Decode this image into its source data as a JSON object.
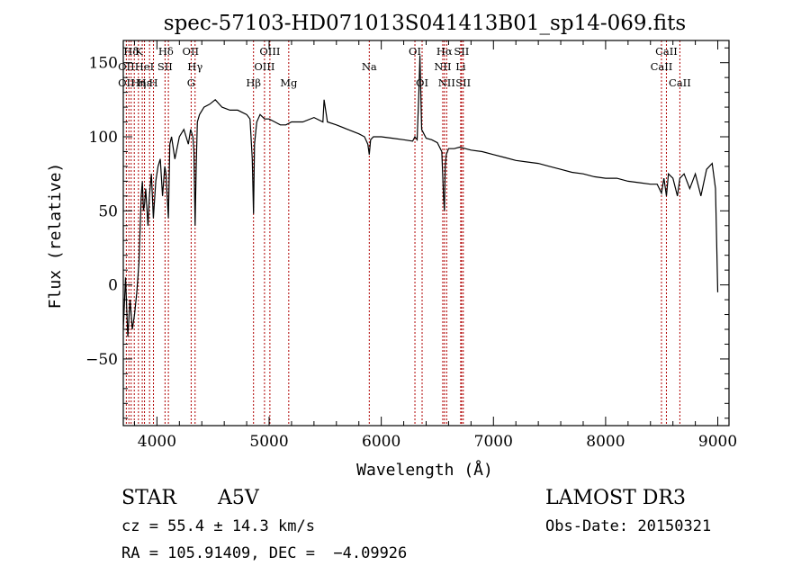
{
  "chart_data": {
    "type": "line",
    "title": "spec-57103-HD071013S041413B01_sp14-069.fits",
    "xlabel": "Wavelength (Å)",
    "ylabel": "Flux (relative)",
    "xlim": [
      3700,
      9100
    ],
    "ylim": [
      -95,
      165
    ],
    "xticks": [
      4000,
      5000,
      6000,
      7000,
      8000,
      9000
    ],
    "xtick_labels": [
      "4000",
      "5000",
      "6000",
      "7000",
      "8000",
      "9000"
    ],
    "yticks": [
      -50,
      0,
      50,
      100,
      150
    ],
    "ytick_labels": [
      "−50",
      "0",
      "50",
      "100",
      "150"
    ],
    "series": [
      {
        "name": "spectrum",
        "x": [
          3700,
          3720,
          3740,
          3760,
          3780,
          3800,
          3820,
          3840,
          3860,
          3870,
          3880,
          3890,
          3900,
          3920,
          3933,
          3950,
          3968,
          3990,
          4010,
          4030,
          4050,
          4070,
          4080,
          4102,
          4115,
          4130,
          4160,
          4200,
          4240,
          4280,
          4300,
          4320,
          4330,
          4340,
          4350,
          4360,
          4380,
          4420,
          4470,
          4520,
          4580,
          4650,
          4720,
          4800,
          4830,
          4850,
          4861,
          4870,
          4890,
          4920,
          4960,
          5000,
          5050,
          5100,
          5150,
          5200,
          5300,
          5400,
          5480,
          5490,
          5520,
          5600,
          5700,
          5800,
          5850,
          5880,
          5893,
          5905,
          5930,
          6000,
          6100,
          6200,
          6280,
          6300,
          6320,
          6335,
          6345,
          6360,
          6400,
          6450,
          6500,
          6540,
          6555,
          6563,
          6570,
          6580,
          6600,
          6650,
          6700,
          6750,
          6800,
          6900,
          7000,
          7100,
          7200,
          7300,
          7400,
          7500,
          7600,
          7700,
          7800,
          7900,
          8000,
          8100,
          8200,
          8300,
          8400,
          8460,
          8498,
          8520,
          8542,
          8560,
          8600,
          8640,
          8662,
          8700,
          8750,
          8800,
          8850,
          8900,
          8950,
          8980,
          9000
        ],
        "y": [
          -30,
          5,
          -35,
          -10,
          -30,
          -20,
          -5,
          15,
          60,
          70,
          50,
          55,
          65,
          40,
          60,
          75,
          45,
          70,
          80,
          85,
          60,
          80,
          75,
          45,
          95,
          100,
          85,
          100,
          105,
          95,
          105,
          100,
          90,
          40,
          80,
          110,
          115,
          120,
          122,
          125,
          120,
          118,
          118,
          115,
          112,
          85,
          48,
          95,
          110,
          115,
          112,
          112,
          110,
          108,
          108,
          110,
          110,
          113,
          110,
          125,
          110,
          108,
          105,
          102,
          100,
          95,
          88,
          98,
          100,
          100,
          99,
          98,
          97,
          100,
          98,
          130,
          155,
          105,
          99,
          98,
          96,
          90,
          60,
          50,
          80,
          88,
          92,
          92,
          93,
          92,
          91,
          90,
          88,
          86,
          84,
          83,
          82,
          80,
          78,
          76,
          75,
          73,
          72,
          72,
          70,
          69,
          68,
          68,
          62,
          72,
          60,
          75,
          72,
          60,
          72,
          75,
          65,
          75,
          60,
          78,
          82,
          65,
          -5
        ]
      }
    ],
    "line_markers": [
      {
        "label": "Hδ",
        "wavelength": 3770,
        "row": 1
      },
      {
        "label": "K",
        "wavelength": 3840,
        "row": 1
      },
      {
        "label": "Hδ",
        "wavelength": 4080,
        "row": 1
      },
      {
        "label": "OII",
        "wavelength": 4300,
        "row": 1
      },
      {
        "label": "OIII",
        "wavelength": 5007,
        "row": 1
      },
      {
        "label": "OI",
        "wavelength": 6300,
        "row": 1
      },
      {
        "label": "Hα",
        "wavelength": 6563,
        "row": 1
      },
      {
        "label": "SII",
        "wavelength": 6716,
        "row": 1
      },
      {
        "label": "CaII",
        "wavelength": 8542,
        "row": 1
      },
      {
        "label": "OII",
        "wavelength": 3727,
        "row": 2
      },
      {
        "label": "HeI",
        "wavelength": 3888,
        "row": 2
      },
      {
        "label": "SII",
        "wavelength": 4072,
        "row": 2
      },
      {
        "label": "Hγ",
        "wavelength": 4340,
        "row": 2
      },
      {
        "label": "OIII",
        "wavelength": 4959,
        "row": 2
      },
      {
        "label": "Na",
        "wavelength": 5893,
        "row": 2
      },
      {
        "label": "NII",
        "wavelength": 6548,
        "row": 2
      },
      {
        "label": "Li",
        "wavelength": 6708,
        "row": 2
      },
      {
        "label": "CaII",
        "wavelength": 8498,
        "row": 2
      },
      {
        "label": "OII",
        "wavelength": 3727,
        "row": 3
      },
      {
        "label": "Hε",
        "wavelength": 3889,
        "row": 3
      },
      {
        "label": "Hη",
        "wavelength": 3835,
        "row": 3
      },
      {
        "label": "H",
        "wavelength": 3969,
        "row": 3
      },
      {
        "label": "G",
        "wavelength": 4305,
        "row": 3
      },
      {
        "label": "Hβ",
        "wavelength": 4861,
        "row": 3
      },
      {
        "label": "Mg",
        "wavelength": 5175,
        "row": 3
      },
      {
        "label": "OI",
        "wavelength": 6364,
        "row": 3
      },
      {
        "label": "NII",
        "wavelength": 6583,
        "row": 3
      },
      {
        "label": "SII",
        "wavelength": 6731,
        "row": 3
      },
      {
        "label": "CaII",
        "wavelength": 8662,
        "row": 3
      }
    ],
    "marker_lines": [
      3727,
      3750,
      3770,
      3798,
      3835,
      3869,
      3889,
      3934,
      3969,
      4072,
      4102,
      4305,
      4340,
      4861,
      4959,
      5007,
      5175,
      5893,
      6300,
      6364,
      6548,
      6563,
      6583,
      6708,
      6716,
      6731,
      8498,
      8542,
      8662
    ]
  },
  "info": {
    "object_class": "STAR",
    "subclass": "A5V",
    "survey": "LAMOST DR3",
    "cz": "cz = 55.4 ± 14.3 km/s",
    "obs_date": "Obs-Date: 20150321",
    "coords": "RA = 105.91409, DEC =  −4.09926"
  },
  "colors": {
    "axis": "#000000",
    "spectrum": "#000000",
    "marker": "#b00000",
    "background": "#ffffff"
  }
}
